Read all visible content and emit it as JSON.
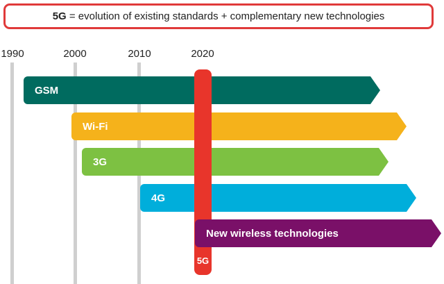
{
  "header": {
    "bold": "5G",
    "rest": " = evolution of existing standards + complementary new technologies"
  },
  "years": [
    "1990",
    "2000",
    "2010",
    "2020"
  ],
  "bars": [
    {
      "label": "GSM",
      "color": "#006b5f"
    },
    {
      "label": "Wi-Fi",
      "color": "#f5b21b"
    },
    {
      "label": "3G",
      "color": "#7dc142"
    },
    {
      "label": "4G",
      "color": "#00aedb"
    },
    {
      "label": "New wireless technologies",
      "color": "#7a1068"
    }
  ],
  "highlight": {
    "label": "5G",
    "color": "#e8352b"
  }
}
